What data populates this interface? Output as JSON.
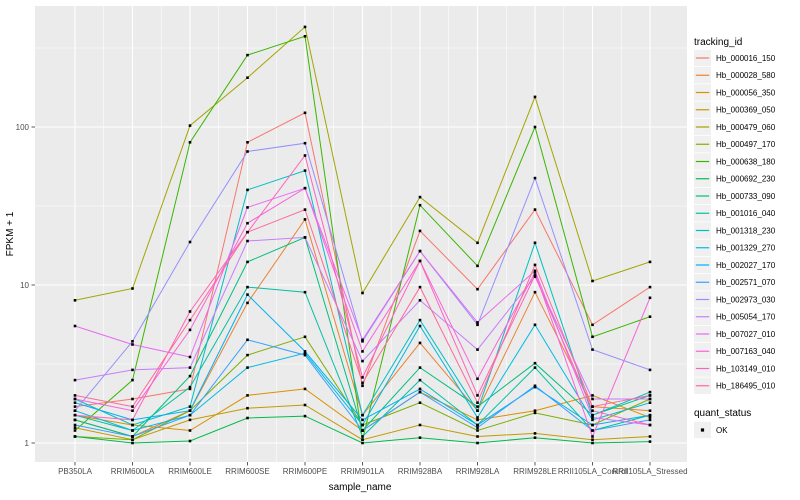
{
  "chart_data": {
    "type": "line",
    "title": "",
    "xlabel": "sample_name",
    "ylabel": "FPKM + 1",
    "yscale": "log10",
    "yticks": [
      1,
      10,
      100
    ],
    "ylim": [
      0.76,
      583
    ],
    "grid": true,
    "legend_position": "right",
    "panel_bg": "#EBEBEB",
    "grid_color": "#FFFFFF",
    "tick_color": "#333333",
    "point_marker": "black-square",
    "legend_title": "tracking_id",
    "quant_legend": {
      "title": "quant_status",
      "items": [
        {
          "label": "OK",
          "marker": "black-square",
          "color": "#000000"
        }
      ]
    },
    "categories": [
      "PB350LA",
      "RRIM600LA",
      "RRIM600LE",
      "RRIM600SE",
      "RRIM600PE",
      "RRIM901LA",
      "RRIM928BA",
      "RRIM928LA",
      "RRIM928LE",
      "RRII105LA_Control",
      "RRII105LA_Stressed"
    ],
    "series": [
      {
        "name": "Hb_000016_150",
        "color": "#F8766D",
        "values": [
          1.7,
          1.9,
          2.2,
          80,
          123,
          2.3,
          22,
          9.4,
          30,
          5.6,
          9.7
        ]
      },
      {
        "name": "Hb_000028_580",
        "color": "#EA8331",
        "values": [
          1.4,
          1.1,
          1.6,
          7.7,
          26,
          1.5,
          4.3,
          1.6,
          9.0,
          1.7,
          1.6
        ]
      },
      {
        "name": "Hb_000056_350",
        "color": "#D89000",
        "values": [
          1.5,
          1.3,
          1.2,
          2.0,
          2.2,
          1.2,
          2.1,
          1.4,
          1.6,
          2.0,
          1.45
        ]
      },
      {
        "name": "Hb_000369_050",
        "color": "#C09B00",
        "values": [
          1.25,
          1.05,
          1.4,
          1.66,
          1.74,
          1.05,
          1.3,
          1.1,
          1.15,
          1.05,
          1.1
        ]
      },
      {
        "name": "Hb_000479_060",
        "color": "#A3A500",
        "values": [
          8,
          9.5,
          102,
          205,
          430,
          8.9,
          36,
          18.5,
          155,
          10.6,
          14
        ]
      },
      {
        "name": "Hb_000497_170",
        "color": "#7CAE00",
        "values": [
          1.1,
          1.05,
          1.6,
          3.6,
          4.7,
          1.3,
          1.8,
          1.2,
          1.55,
          1.3,
          1.9
        ]
      },
      {
        "name": "Hb_000638_180",
        "color": "#39B600",
        "values": [
          1.2,
          2.5,
          80,
          285,
          375,
          1.05,
          32,
          13.2,
          100,
          4.7,
          6.3
        ]
      },
      {
        "name": "Hb_000692_230",
        "color": "#00BB4E",
        "values": [
          1.1,
          1.0,
          1.03,
          1.44,
          1.48,
          1.0,
          1.08,
          1.0,
          1.08,
          1.0,
          1.02
        ]
      },
      {
        "name": "Hb_000733_090",
        "color": "#00BF7D",
        "values": [
          1.4,
          1.1,
          2.65,
          14,
          20,
          1.2,
          3.0,
          1.7,
          3.2,
          1.5,
          2.0
        ]
      },
      {
        "name": "Hb_001016_040",
        "color": "#00C1A3",
        "values": [
          1.5,
          1.2,
          2.26,
          9.7,
          9,
          1.1,
          2.5,
          1.3,
          3.0,
          1.2,
          1.5
        ]
      },
      {
        "name": "Hb_001318_230",
        "color": "#00BFC4",
        "values": [
          1.9,
          1.3,
          1.7,
          40,
          53,
          1.5,
          6.0,
          1.6,
          18.5,
          1.5,
          2.1
        ]
      },
      {
        "name": "Hb_001329_270",
        "color": "#00BAE0",
        "values": [
          1.6,
          1.2,
          1.5,
          3.0,
          3.7,
          1.3,
          5.5,
          1.45,
          5.6,
          1.4,
          1.8
        ]
      },
      {
        "name": "Hb_002027_170",
        "color": "#00B0F6",
        "values": [
          1.8,
          1.4,
          1.6,
          8.7,
          3.8,
          1.4,
          2.2,
          1.3,
          2.26,
          1.3,
          1.5
        ]
      },
      {
        "name": "Hb_002571_070",
        "color": "#35A2FF",
        "values": [
          1.3,
          1.1,
          1.5,
          4.5,
          3.6,
          1.2,
          2.1,
          1.25,
          2.3,
          1.2,
          1.4
        ]
      },
      {
        "name": "Hb_002973_030",
        "color": "#9590FF",
        "values": [
          1.6,
          4.4,
          18.7,
          70,
          79,
          4.4,
          16.4,
          5.6,
          47.5,
          3.9,
          2.9
        ]
      },
      {
        "name": "Hb_005054_170",
        "color": "#C77CFF",
        "values": [
          2.5,
          2.9,
          3.0,
          19,
          20,
          3.3,
          8.0,
          3.9,
          11.3,
          1.9,
          1.9
        ]
      },
      {
        "name": "Hb_007027_010",
        "color": "#E76BF3",
        "values": [
          5.5,
          4.2,
          3.5,
          31,
          41,
          4.5,
          16.4,
          5.8,
          12.3,
          1.45,
          1.3
        ]
      },
      {
        "name": "Hb_007163_040",
        "color": "#FA62DB",
        "values": [
          1.9,
          1.6,
          5.2,
          24.6,
          41,
          3.8,
          14.2,
          2.55,
          12,
          1.1,
          8.3
        ]
      },
      {
        "name": "Hb_103149_010",
        "color": "#FF62BC",
        "values": [
          1.5,
          1.4,
          6.8,
          21.6,
          66,
          2.6,
          14.2,
          2.0,
          11.5,
          1.6,
          1.3
        ]
      },
      {
        "name": "Hb_186495_010",
        "color": "#FF6A98",
        "values": [
          2.0,
          1.7,
          6.0,
          21.6,
          30,
          2.4,
          9.7,
          1.8,
          13.4,
          1.7,
          2.0
        ]
      }
    ]
  }
}
